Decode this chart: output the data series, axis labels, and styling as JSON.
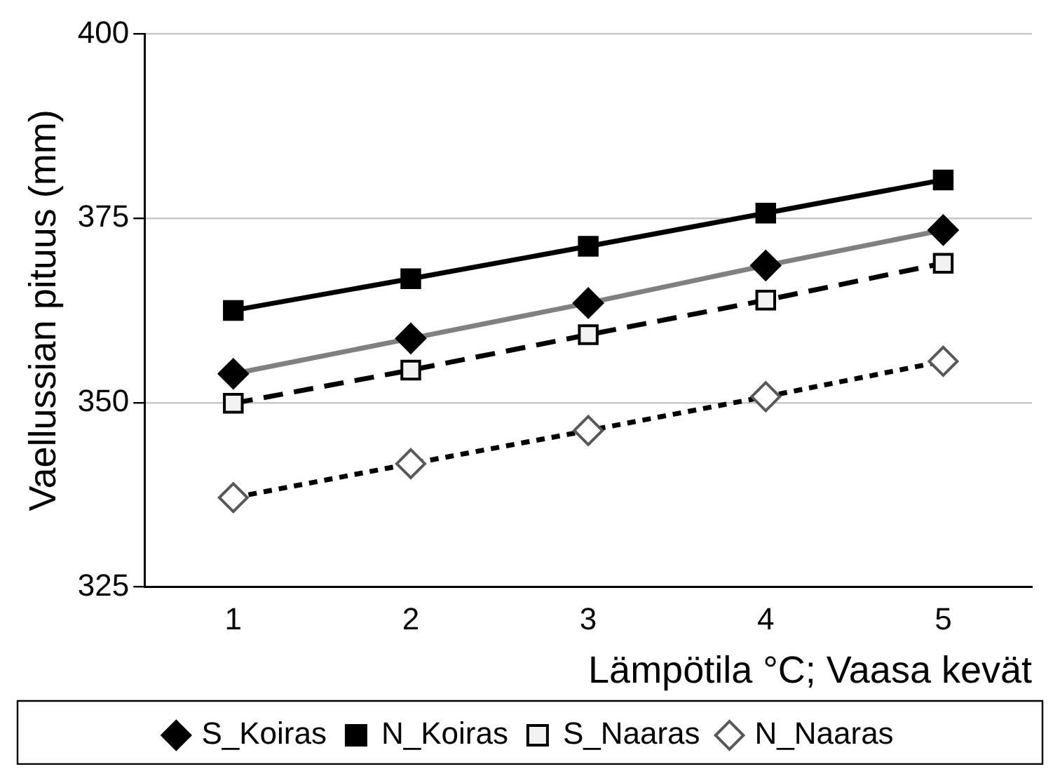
{
  "chart_data": {
    "type": "line",
    "xlabel": "Lämpötila °C; Vaasa kevät",
    "ylabel": "Vaellussian pituus (mm)",
    "categories": [
      "1",
      "2",
      "3",
      "4",
      "5"
    ],
    "series": [
      {
        "name": "S_Koiras",
        "color": "#808080",
        "marker": "diamond",
        "line_style": "solid",
        "values": [
          353.9,
          358.7,
          363.5,
          368.6,
          373.4
        ]
      },
      {
        "name": "N_Koiras",
        "color": "#000000",
        "marker": "square",
        "line_style": "solid",
        "values": [
          362.5,
          366.8,
          371.2,
          375.7,
          380.2
        ]
      },
      {
        "name": "S_Naaras",
        "color": "#000000",
        "marker": "square",
        "line_style": "dashed",
        "values": [
          349.9,
          354.4,
          359.2,
          363.9,
          368.9
        ]
      },
      {
        "name": "N_Naaras",
        "color": "#000000",
        "marker": "diamond",
        "line_style": "dotted",
        "values": [
          337.1,
          341.7,
          346.2,
          350.8,
          355.6
        ]
      }
    ],
    "ylim": [
      325,
      400
    ],
    "yticks": [
      325,
      350,
      375,
      400
    ],
    "grid": "y",
    "legend": "bottom"
  }
}
